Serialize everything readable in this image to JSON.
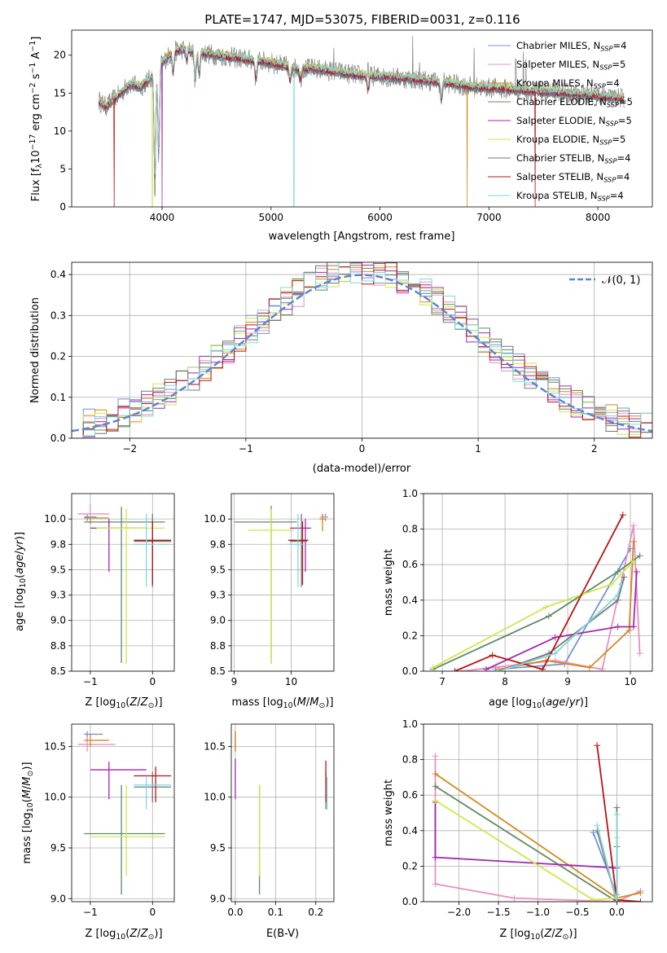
{
  "colors": {
    "chabrier_miles": "#6f95d4",
    "salpeter_miles": "#e98fc0",
    "kroupa_miles": "#d2891b",
    "chabrier_elodie": "#5f8a66",
    "salpeter_elodie": "#a226b2",
    "kroupa_elodie": "#cde84b",
    "chabrier_stelib": "#777777",
    "salpeter_stelib": "#b81414",
    "kroupa_stelib": "#82d6dc",
    "gaussian": "#5b85d8"
  },
  "legend_spectrum": [
    {
      "key": "chabrier_miles",
      "text": "Chabrier MILES, N",
      "sub": "SSP",
      "tail": "=4"
    },
    {
      "key": "salpeter_miles",
      "text": "Salpeter MILES, N",
      "sub": "SSP",
      "tail": "=5"
    },
    {
      "key": "kroupa_miles",
      "text": "Kroupa MILES, N",
      "sub": "SSP",
      "tail": "=4"
    },
    {
      "key": "chabrier_elodie",
      "text": "Chabrier ELODIE, N",
      "sub": "SSP",
      "tail": "=5"
    },
    {
      "key": "salpeter_elodie",
      "text": "Salpeter ELODIE, N",
      "sub": "SSP",
      "tail": "=5"
    },
    {
      "key": "kroupa_elodie",
      "text": "Kroupa ELODIE, N",
      "sub": "SSP",
      "tail": "=5"
    },
    {
      "key": "chabrier_stelib",
      "text": "Chabrier STELIB, N",
      "sub": "SSP",
      "tail": "=4"
    },
    {
      "key": "salpeter_stelib",
      "text": "Salpeter STELIB, N",
      "sub": "SSP",
      "tail": "=4"
    },
    {
      "key": "kroupa_stelib",
      "text": "Kroupa STELIB, N",
      "sub": "SSP",
      "tail": "=4"
    }
  ],
  "chart_data": [
    {
      "id": "spectrum",
      "type": "line",
      "title": "PLATE=1747, MJD=53075, FIBERID=0031, z=0.116",
      "xlabel": "wavelength [Angstrom, rest frame]",
      "ylabel_parts": [
        "Flux [f",
        "λ",
        "10",
        "−17",
        " erg cm",
        "−2",
        " s",
        "−1",
        " A",
        "−1",
        "]"
      ],
      "xlim": [
        3170,
        8500
      ],
      "ylim": [
        0,
        23.3
      ],
      "xticks": [
        4000,
        5000,
        6000,
        7000,
        8000
      ],
      "yticks": [
        0,
        5,
        10,
        15,
        20
      ],
      "continuum": [
        [
          3420,
          14
        ],
        [
          3480,
          13.2
        ],
        [
          3560,
          14.2
        ],
        [
          3620,
          15
        ],
        [
          3700,
          16.2
        ],
        [
          3800,
          15.8
        ],
        [
          3900,
          17
        ],
        [
          4000,
          19
        ],
        [
          4100,
          20.5
        ],
        [
          4200,
          20.8
        ],
        [
          4400,
          20.2
        ],
        [
          4600,
          19.8
        ],
        [
          4800,
          19.4
        ],
        [
          5000,
          19
        ],
        [
          5200,
          18.3
        ],
        [
          5400,
          18.2
        ],
        [
          5600,
          17.8
        ],
        [
          5800,
          17.4
        ],
        [
          6000,
          17.2
        ],
        [
          6200,
          17
        ],
        [
          6400,
          16.7
        ],
        [
          6600,
          16.4
        ],
        [
          6800,
          15.9
        ],
        [
          7000,
          15.7
        ],
        [
          7200,
          15.5
        ],
        [
          7400,
          15.3
        ],
        [
          7600,
          15.1
        ],
        [
          7800,
          14.9
        ],
        [
          8000,
          14.6
        ],
        [
          8240,
          14.3
        ]
      ],
      "absorption_lines": [
        [
          3934,
          15.5
        ],
        [
          3969,
          12
        ],
        [
          4101,
          3
        ],
        [
          4226,
          1.5
        ],
        [
          4304,
          4
        ],
        [
          4340,
          3
        ],
        [
          4861,
          2.5
        ],
        [
          5175,
          2
        ],
        [
          5270,
          1.5
        ],
        [
          5890,
          2
        ],
        [
          6563,
          2.5
        ]
      ],
      "dropouts": [
        {
          "x": 3560,
          "model": "salpeter_stelib"
        },
        {
          "x": 3910,
          "model": "kroupa_elodie"
        },
        {
          "x": 4001,
          "model": "salpeter_elodie"
        },
        {
          "x": 5210,
          "model": "kroupa_stelib"
        },
        {
          "x": 6800,
          "model": "kroupa_miles"
        },
        {
          "x": 7425,
          "model": "salpeter_stelib"
        }
      ],
      "spikes": [
        [
          5577,
          21
        ],
        [
          5890,
          19
        ],
        [
          6300,
          22.5
        ],
        [
          6364,
          19
        ],
        [
          6863,
          21
        ],
        [
          7246,
          19.5
        ],
        [
          7316,
          20.5
        ],
        [
          7340,
          19.5
        ]
      ]
    },
    {
      "id": "residuals",
      "type": "histogram",
      "xlabel": "(data-model)/error",
      "ylabel": "Normed distribution",
      "xlim": [
        -2.5,
        2.5
      ],
      "ylim": [
        0,
        0.43
      ],
      "xticks": [
        -2,
        -1,
        0,
        1,
        2
      ],
      "yticks": [
        0.0,
        0.1,
        0.2,
        0.3,
        0.4
      ],
      "legend": "𝒩(0, 1)",
      "bin_width": 0.1
    },
    {
      "id": "age_vs_Z",
      "type": "errorbar",
      "xlabel": "Z [log",
      "ylabel": "age  [log",
      "xlim": [
        -1.3,
        0.35
      ],
      "ylim": [
        8.5,
        10.25
      ],
      "xticks": [
        -1,
        0
      ],
      "yticks": [
        8.5,
        8.75,
        9.0,
        9.25,
        9.5,
        9.75,
        10.0
      ],
      "points": [
        {
          "m": "chabrier_miles",
          "x": -1.05,
          "y": 10.02,
          "xl": -1.1,
          "xr": -0.9,
          "yl": 9.98,
          "yu": 10.05
        },
        {
          "m": "salpeter_miles",
          "x": -1.0,
          "y": 10.05,
          "xl": -1.2,
          "xr": -0.7,
          "yl": 9.95,
          "yu": 10.15
        },
        {
          "m": "kroupa_miles",
          "x": -1.0,
          "y": 10.01,
          "xl": -1.1,
          "xr": -0.7,
          "yl": 9.95,
          "yu": 10.02
        },
        {
          "m": "chabrier_elodie",
          "x": -0.5,
          "y": 9.97,
          "xl": -1.1,
          "xr": 0.2,
          "yl": 8.58,
          "yu": 10.12
        },
        {
          "m": "salpeter_elodie",
          "x": -0.7,
          "y": 9.91,
          "xl": -1.0,
          "xr": -0.1,
          "yl": 9.48,
          "yu": 10.0
        },
        {
          "m": "kroupa_elodie",
          "x": -0.42,
          "y": 9.91,
          "xl": -0.9,
          "xr": 0.2,
          "yl": 8.57,
          "yu": 10.1
        },
        {
          "m": "chabrier_stelib",
          "x": 0.0,
          "y": 9.78,
          "xl": -0.3,
          "xr": 0.3,
          "yl": 9.33,
          "yu": 10.05
        },
        {
          "m": "salpeter_stelib",
          "x": 0.0,
          "y": 9.79,
          "xl": -0.3,
          "xr": 0.3,
          "yl": 9.35,
          "yu": 9.98
        },
        {
          "m": "kroupa_stelib",
          "x": -0.1,
          "y": 9.75,
          "xl": -0.3,
          "xr": 0.3,
          "yl": 9.33,
          "yu": 10.05
        }
      ]
    },
    {
      "id": "age_vs_mass",
      "type": "errorbar",
      "xlabel": "mass [log",
      "xlim": [
        8.95,
        10.75
      ],
      "ylim": [
        8.5,
        10.25
      ],
      "xticks": [
        9,
        10
      ],
      "yticks": [
        8.5,
        8.75,
        9.0,
        9.25,
        9.5,
        9.75,
        10.0
      ],
      "points": [
        {
          "m": "chabrier_miles",
          "x": 10.6,
          "y": 10.02,
          "xl": 10.55,
          "xr": 10.65,
          "yl": 9.98,
          "yu": 10.05
        },
        {
          "m": "salpeter_miles",
          "x": 10.55,
          "y": 10.02,
          "xl": 10.5,
          "xr": 10.65,
          "yl": 9.97,
          "yu": 10.05
        },
        {
          "m": "kroupa_miles",
          "x": 10.55,
          "y": 10.0,
          "xl": 10.5,
          "xr": 10.6,
          "yl": 9.88,
          "yu": 10.05
        },
        {
          "m": "chabrier_elodie",
          "x": 9.65,
          "y": 9.97,
          "xl": 9.0,
          "xr": 10.1,
          "yl": 8.58,
          "yu": 10.13
        },
        {
          "m": "salpeter_elodie",
          "x": 10.25,
          "y": 9.91,
          "xl": 9.98,
          "xr": 10.35,
          "yl": 9.48,
          "yu": 10.0
        },
        {
          "m": "kroupa_elodie",
          "x": 9.65,
          "y": 9.89,
          "xl": 9.25,
          "xr": 10.05,
          "yl": 8.57,
          "yu": 10.1
        },
        {
          "m": "chabrier_stelib",
          "x": 10.18,
          "y": 9.78,
          "xl": 9.98,
          "xr": 10.28,
          "yl": 9.33,
          "yu": 10.05
        },
        {
          "m": "salpeter_stelib",
          "x": 10.2,
          "y": 9.79,
          "xl": 9.95,
          "xr": 10.3,
          "yl": 9.35,
          "yu": 9.98
        },
        {
          "m": "kroupa_stelib",
          "x": 10.12,
          "y": 9.75,
          "xl": 9.92,
          "xr": 10.25,
          "yl": 9.33,
          "yu": 10.05
        }
      ]
    },
    {
      "id": "weight_vs_age",
      "type": "line",
      "xlabel": "age  [log",
      "ylabel": "mass weight",
      "xlim": [
        6.7,
        10.35
      ],
      "ylim": [
        0,
        1
      ],
      "xticks": [
        7,
        8,
        9,
        10
      ],
      "yticks": [
        0.0,
        0.2,
        0.4,
        0.6,
        0.8,
        1.0
      ],
      "series": [
        {
          "m": "chabrier_miles",
          "x": [
            7.85,
            8.95,
            10.0
          ],
          "y": [
            0.01,
            0.04,
            0.69
          ]
        },
        {
          "m": "salpeter_miles",
          "x": [
            7.3,
            8.8,
            9.55,
            10.05,
            10.15
          ],
          "y": [
            0.0,
            0.06,
            0.01,
            0.82,
            0.1
          ]
        },
        {
          "m": "kroupa_miles",
          "x": [
            7.9,
            8.65,
            9.35,
            9.98,
            10.05
          ],
          "y": [
            0.01,
            0.06,
            0.02,
            0.23,
            0.73
          ]
        },
        {
          "m": "chabrier_elodie",
          "x": [
            6.85,
            8.7,
            9.8,
            10.15
          ],
          "y": [
            0.01,
            0.31,
            0.56,
            0.65
          ]
        },
        {
          "m": "salpeter_elodie",
          "x": [
            7.7,
            8.8,
            9.8,
            10.05,
            10.1
          ],
          "y": [
            0.01,
            0.19,
            0.25,
            0.25,
            0.56
          ]
        },
        {
          "m": "kroupa_elodie",
          "x": [
            6.85,
            8.65,
            9.7,
            10.05
          ],
          "y": [
            0.02,
            0.36,
            0.49,
            0.62
          ]
        },
        {
          "m": "chabrier_stelib",
          "x": [
            7.9,
            8.7,
            9.8,
            9.9
          ],
          "y": [
            0.0,
            0.1,
            0.4,
            0.53
          ]
        },
        {
          "m": "salpeter_stelib",
          "x": [
            7.2,
            7.8,
            8.6,
            9.88
          ],
          "y": [
            0.0,
            0.09,
            0.01,
            0.88
          ]
        },
        {
          "m": "kroupa_stelib",
          "x": [
            7.9,
            8.8,
            9.8,
            9.85
          ],
          "y": [
            0.0,
            0.1,
            0.43,
            0.49
          ]
        }
      ]
    },
    {
      "id": "mass_vs_Z",
      "type": "errorbar",
      "xlabel": "Z [log",
      "ylabel": "mass [log",
      "xlim": [
        -1.3,
        0.35
      ],
      "ylim": [
        8.97,
        10.72
      ],
      "xticks": [
        -1,
        0
      ],
      "yticks": [
        9.0,
        9.5,
        10.0,
        10.5
      ],
      "points": [
        {
          "m": "chabrier_miles",
          "x": -1.05,
          "y": 10.62,
          "xl": -1.1,
          "xr": -0.8,
          "yl": 10.55,
          "yu": 10.65
        },
        {
          "m": "salpeter_miles",
          "x": -1.05,
          "y": 10.52,
          "xl": -1.2,
          "xr": -0.6,
          "yl": 10.45,
          "yu": 10.6
        },
        {
          "m": "kroupa_miles",
          "x": -1.0,
          "y": 10.56,
          "xl": -1.1,
          "xr": -0.7,
          "yl": 10.5,
          "yu": 10.62
        },
        {
          "m": "chabrier_elodie",
          "x": -0.5,
          "y": 9.64,
          "xl": -1.1,
          "xr": 0.2,
          "yl": 9.04,
          "yu": 10.12
        },
        {
          "m": "salpeter_elodie",
          "x": -0.7,
          "y": 10.27,
          "xl": -1.0,
          "xr": -0.1,
          "yl": 9.98,
          "yu": 10.35
        },
        {
          "m": "kroupa_elodie",
          "x": -0.42,
          "y": 9.61,
          "xl": -1.0,
          "xr": 0.2,
          "yl": 9.22,
          "yu": 10.12
        },
        {
          "m": "chabrier_stelib",
          "x": 0.0,
          "y": 10.1,
          "xl": -0.3,
          "xr": 0.3,
          "yl": 9.95,
          "yu": 10.25
        },
        {
          "m": "salpeter_stelib",
          "x": 0.05,
          "y": 10.21,
          "xl": -0.3,
          "xr": 0.3,
          "yl": 9.95,
          "yu": 10.3
        },
        {
          "m": "kroupa_stelib",
          "x": -0.1,
          "y": 10.12,
          "xl": -0.3,
          "xr": 0.3,
          "yl": 9.88,
          "yu": 10.2
        }
      ]
    },
    {
      "id": "mass_vs_ebv",
      "type": "errorbar",
      "xlabel": "E(B-V)",
      "xlim": [
        -0.01,
        0.245
      ],
      "ylim": [
        8.97,
        10.72
      ],
      "xticks": [
        0.0,
        0.1,
        0.2
      ],
      "yticks": [
        9.0,
        9.5,
        10.0,
        10.5
      ],
      "points": [
        {
          "m": "chabrier_miles",
          "x": 0.0,
          "y": 10.55,
          "xl": 0.0,
          "xr": 0.0,
          "yl": 10.45,
          "yu": 10.65
        },
        {
          "m": "salpeter_miles",
          "x": 0.0,
          "y": 10.55,
          "xl": 0.0,
          "xr": 0.0,
          "yl": 10.5,
          "yu": 10.65
        },
        {
          "m": "kroupa_miles",
          "x": 0.0,
          "y": 10.5,
          "xl": 0.0,
          "xr": 0.0,
          "yl": 10.45,
          "yu": 10.65
        },
        {
          "m": "chabrier_elodie",
          "x": 0.06,
          "y": 9.64,
          "xl": 0.06,
          "xr": 0.06,
          "yl": 9.04,
          "yu": 10.12
        },
        {
          "m": "salpeter_elodie",
          "x": 0.0,
          "y": 10.2,
          "xl": 0.0,
          "xr": 0.0,
          "yl": 9.98,
          "yu": 10.38
        },
        {
          "m": "kroupa_elodie",
          "x": 0.06,
          "y": 9.61,
          "xl": 0.06,
          "xr": 0.06,
          "yl": 9.22,
          "yu": 10.12
        },
        {
          "m": "chabrier_stelib",
          "x": 0.225,
          "y": 10.1,
          "xl": 0.225,
          "xr": 0.225,
          "yl": 9.88,
          "yu": 10.25
        },
        {
          "m": "salpeter_stelib",
          "x": 0.225,
          "y": 10.15,
          "xl": 0.225,
          "xr": 0.225,
          "yl": 9.95,
          "yu": 10.36
        },
        {
          "m": "kroupa_stelib",
          "x": 0.228,
          "y": 10.08,
          "xl": 0.228,
          "xr": 0.228,
          "yl": 9.88,
          "yu": 10.2
        }
      ]
    },
    {
      "id": "weight_vs_Z",
      "type": "line",
      "xlabel": "Z [log",
      "ylabel": "mass weight",
      "xlim": [
        -2.45,
        0.45
      ],
      "ylim": [
        0,
        1
      ],
      "xticks": [
        -2.0,
        -1.5,
        -1.0,
        -0.5,
        0.0
      ],
      "yticks": [
        0.0,
        0.2,
        0.4,
        0.6,
        0.8,
        1.0
      ],
      "series": [
        {
          "m": "chabrier_miles",
          "x": [
            -0.3,
            0.0,
            0.0
          ],
          "y": [
            0.39,
            0.04,
            0.01
          ]
        },
        {
          "m": "salpeter_miles",
          "x": [
            -2.3,
            -2.3,
            -1.3,
            0.0,
            0.3
          ],
          "y": [
            0.82,
            0.1,
            0.02,
            0.0,
            0.06
          ]
        },
        {
          "m": "kroupa_miles",
          "x": [
            -2.3,
            0.0,
            0.3
          ],
          "y": [
            0.72,
            0.02,
            0.05
          ]
        },
        {
          "m": "chabrier_elodie",
          "x": [
            -2.3,
            0.0,
            0.0
          ],
          "y": [
            0.65,
            0.0,
            0.31
          ]
        },
        {
          "m": "salpeter_elodie",
          "x": [
            -2.3,
            -2.3,
            0.0,
            0.0
          ],
          "y": [
            0.56,
            0.25,
            0.19,
            0.01
          ]
        },
        {
          "m": "kroupa_elodie",
          "x": [
            -2.3,
            -0.3,
            0.0,
            0.0
          ],
          "y": [
            0.57,
            0.01,
            0.02,
            0.36
          ]
        },
        {
          "m": "chabrier_stelib",
          "x": [
            -0.25,
            0.0,
            0.0
          ],
          "y": [
            0.4,
            0.0,
            0.53
          ]
        },
        {
          "m": "salpeter_stelib",
          "x": [
            -0.25,
            0.0,
            0.3
          ],
          "y": [
            0.88,
            0.01,
            0.0
          ]
        },
        {
          "m": "kroupa_stelib",
          "x": [
            -0.25,
            0.0,
            0.0
          ],
          "y": [
            0.43,
            0.0,
            0.49
          ]
        }
      ]
    }
  ]
}
